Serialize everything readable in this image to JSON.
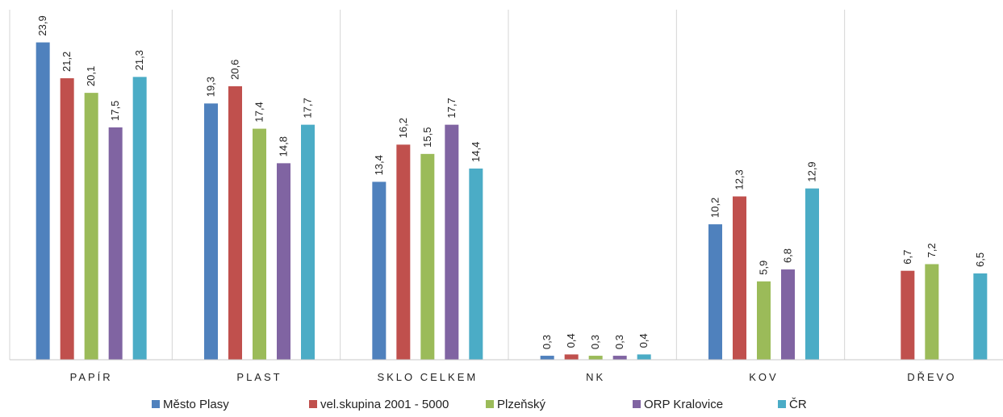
{
  "chart_data": {
    "type": "bar",
    "categories": [
      "PAPÍR",
      "PLAST",
      "SKLO CELKEM",
      "NK",
      "KOV",
      "DŘEVO"
    ],
    "series": [
      {
        "name": "Město Plasy",
        "color": "#4F81BD",
        "values": [
          23.9,
          19.3,
          13.4,
          0.3,
          10.2,
          null
        ]
      },
      {
        "name": "vel.skupina 2001 - 5000",
        "color": "#C0504D",
        "values": [
          21.2,
          20.6,
          16.2,
          0.4,
          12.3,
          6.7
        ]
      },
      {
        "name": "Plzeňský",
        "color": "#9BBB59",
        "values": [
          20.1,
          17.4,
          15.5,
          0.3,
          5.9,
          7.2
        ]
      },
      {
        "name": "ORP Kralovice",
        "color": "#8064A2",
        "values": [
          17.5,
          14.8,
          17.7,
          0.3,
          6.8,
          null
        ]
      },
      {
        "name": "ČR",
        "color": "#4BACC6",
        "values": [
          21.3,
          17.7,
          14.4,
          0.4,
          12.9,
          6.5
        ]
      }
    ],
    "data_labels": [
      [
        "23,9",
        "19,3",
        "13,4",
        "0,3",
        "10,2",
        ""
      ],
      [
        "21,2",
        "20,6",
        "16,2",
        "0,4",
        "12,3",
        "6,7"
      ],
      [
        "20,1",
        "17,4",
        "15,5",
        "0,3",
        "5,9",
        "7,2"
      ],
      [
        "17,5",
        "14,8",
        "17,7",
        "0,3",
        "6,8",
        ""
      ],
      [
        "21,3",
        "17,7",
        "14,4",
        "0,4",
        "12,9",
        "6,5"
      ]
    ],
    "ylim": [
      0,
      26
    ],
    "grid": false,
    "legend": "bottom"
  }
}
